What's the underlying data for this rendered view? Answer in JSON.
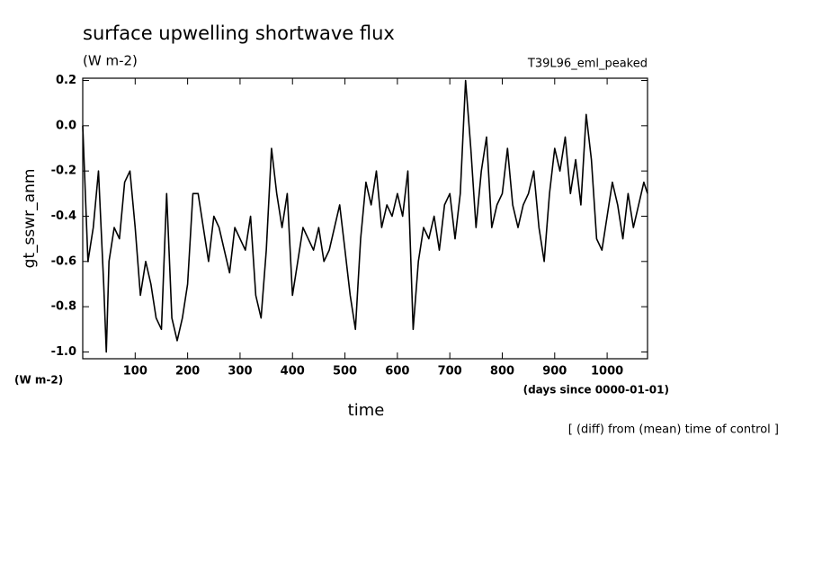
{
  "chart_data": {
    "type": "line",
    "title": "surface upwelling shortwave flux",
    "units": "(W m-2)",
    "experiment": "T39L96_eml_peaked",
    "y_label": "gt_sswr_anm",
    "x_label": "time",
    "x_units": "(days since 0000-01-01)",
    "note": "[ (diff) from (mean) time of control ]",
    "x": [
      0,
      10,
      20,
      30,
      40,
      45,
      50,
      60,
      70,
      80,
      90,
      100,
      110,
      120,
      130,
      140,
      150,
      160,
      170,
      180,
      190,
      200,
      210,
      220,
      230,
      240,
      250,
      260,
      270,
      280,
      290,
      300,
      310,
      320,
      330,
      340,
      350,
      360,
      370,
      380,
      390,
      400,
      410,
      420,
      430,
      440,
      450,
      460,
      470,
      480,
      490,
      500,
      510,
      520,
      530,
      540,
      550,
      560,
      570,
      580,
      590,
      600,
      610,
      620,
      630,
      640,
      650,
      660,
      670,
      680,
      690,
      700,
      710,
      720,
      730,
      740,
      750,
      760,
      770,
      780,
      790,
      800,
      810,
      820,
      830,
      840,
      850,
      860,
      870,
      880,
      890,
      900,
      910,
      920,
      930,
      940,
      950,
      960,
      970,
      980,
      990,
      1000,
      1010,
      1020,
      1030,
      1040,
      1050,
      1060,
      1070,
      1077
    ],
    "series": [
      {
        "name": "gt_sswr_anm",
        "color": "#000000",
        "values": [
          0.0,
          -0.6,
          -0.45,
          -0.2,
          -0.7,
          -1.0,
          -0.6,
          -0.45,
          -0.5,
          -0.25,
          -0.2,
          -0.45,
          -0.75,
          -0.6,
          -0.7,
          -0.85,
          -0.9,
          -0.3,
          -0.85,
          -0.95,
          -0.85,
          -0.7,
          -0.3,
          -0.3,
          -0.45,
          -0.6,
          -0.4,
          -0.45,
          -0.55,
          -0.65,
          -0.45,
          -0.5,
          -0.55,
          -0.4,
          -0.75,
          -0.85,
          -0.55,
          -0.1,
          -0.3,
          -0.45,
          -0.3,
          -0.75,
          -0.6,
          -0.45,
          -0.5,
          -0.55,
          -0.45,
          -0.6,
          -0.55,
          -0.45,
          -0.35,
          -0.55,
          -0.75,
          -0.9,
          -0.5,
          -0.25,
          -0.35,
          -0.2,
          -0.45,
          -0.35,
          -0.4,
          -0.3,
          -0.4,
          -0.2,
          -0.9,
          -0.6,
          -0.45,
          -0.5,
          -0.4,
          -0.55,
          -0.35,
          -0.3,
          -0.5,
          -0.3,
          0.2,
          -0.1,
          -0.45,
          -0.2,
          -0.05,
          -0.45,
          -0.35,
          -0.3,
          -0.1,
          -0.35,
          -0.45,
          -0.35,
          -0.3,
          -0.2,
          -0.45,
          -0.6,
          -0.3,
          -0.1,
          -0.2,
          -0.05,
          -0.3,
          -0.15,
          -0.35,
          0.05,
          -0.15,
          -0.5,
          -0.55,
          -0.4,
          -0.25,
          -0.35,
          -0.5,
          -0.3,
          -0.45,
          -0.35,
          -0.25,
          -0.3
        ]
      }
    ],
    "xlim": [
      0,
      1077
    ],
    "ylim": [
      -1.03,
      0.21
    ],
    "xticks": [
      100,
      200,
      300,
      400,
      500,
      600,
      700,
      800,
      900,
      1000
    ],
    "yticks": [
      {
        "value": -1.0,
        "label": "-1.0"
      },
      -0.8,
      -0.6,
      -0.4,
      -0.2,
      {
        "value": 0.0,
        "label": "0.0"
      },
      0.2
    ]
  }
}
